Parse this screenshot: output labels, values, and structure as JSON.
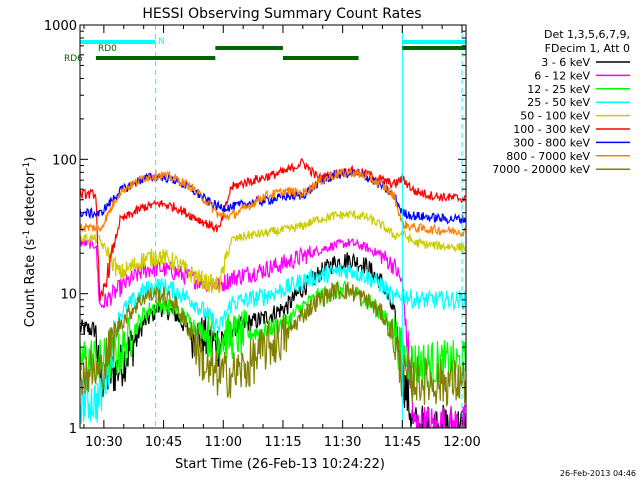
{
  "chart_data": {
    "type": "line",
    "title": "HESSI Observing Summary Count Rates",
    "xlabel": "Start Time (26-Feb-13 10:24:22)",
    "ylabel_main": "Count Rate (s",
    "ylabel_sup1": "-1",
    "ylabel_mid": " detector",
    "ylabel_sup2": "-1",
    "ylabel_end": ")",
    "yscale": "log",
    "ylim": [
      1,
      1000
    ],
    "xlim_minutes": [
      -6,
      91
    ],
    "xticks": [
      {
        "label": "10:30",
        "min": 0
      },
      {
        "label": "10:45",
        "min": 15
      },
      {
        "label": "11:00",
        "min": 30
      },
      {
        "label": "11:15",
        "min": 45
      },
      {
        "label": "11:30",
        "min": 60
      },
      {
        "label": "11:45",
        "min": 75
      },
      {
        "label": "12:00",
        "min": 90
      }
    ],
    "yticks": [
      {
        "label": "1",
        "value": 1
      },
      {
        "label": "10",
        "value": 10
      },
      {
        "label": "100",
        "value": 100
      },
      {
        "label": "1000",
        "value": 1000
      }
    ],
    "legend_placement": "right",
    "legend_header": [
      "Det 1,3,5,6,7,9,",
      "FDecim 1, Att 0"
    ],
    "series": [
      {
        "name": "3 - 6 keV",
        "color": "#000000",
        "x": [
          -6,
          -2,
          -1,
          4,
          10,
          14,
          18,
          22,
          26,
          29,
          32,
          36,
          40,
          46,
          50,
          54,
          58,
          62,
          66,
          70,
          73,
          75,
          78,
          82,
          86,
          91
        ],
        "y": [
          5.5,
          5.4,
          2.2,
          2.8,
          6,
          8,
          7,
          5,
          4.5,
          4.2,
          5.5,
          6,
          6.5,
          8,
          11,
          14,
          17,
          18,
          16,
          12,
          7,
          2.5,
          1,
          1,
          1,
          1
        ]
      },
      {
        "name": "6 - 12 keV",
        "color": "#ff00ff",
        "x": [
          -6,
          -2,
          -1,
          4,
          10,
          14,
          18,
          22,
          26,
          29,
          32,
          36,
          40,
          46,
          50,
          54,
          58,
          62,
          66,
          70,
          73,
          75,
          78,
          82,
          86,
          91
        ],
        "y": [
          24,
          23,
          8,
          11,
          15,
          15.5,
          14.5,
          13,
          12,
          11.5,
          13,
          14,
          15,
          17,
          19,
          21,
          23,
          24,
          22,
          19,
          16,
          12,
          1,
          1,
          1,
          1
        ]
      },
      {
        "name": "12 - 25 keV",
        "color": "#00ff00",
        "x": [
          -6,
          -2,
          -1,
          4,
          10,
          14,
          18,
          22,
          26,
          29,
          32,
          36,
          40,
          46,
          50,
          54,
          58,
          62,
          66,
          70,
          73,
          75,
          78,
          82,
          86,
          91
        ],
        "y": [
          3.2,
          3.3,
          3.1,
          3.5,
          7,
          8.5,
          7.5,
          6,
          5,
          4.8,
          4.8,
          5,
          5.3,
          6.2,
          8,
          9.5,
          10.5,
          10.5,
          9,
          7,
          5,
          3.5,
          3,
          3,
          3,
          3
        ]
      },
      {
        "name": "25 - 50 keV",
        "color": "#00ffff",
        "x": [
          -6,
          -2,
          -1,
          4,
          10,
          14,
          18,
          22,
          26,
          29,
          32,
          36,
          40,
          46,
          50,
          54,
          58,
          62,
          66,
          70,
          73,
          75,
          78,
          82,
          86,
          91
        ],
        "y": [
          1.6,
          1.6,
          1.6,
          7,
          10.5,
          11.5,
          10.5,
          9,
          7,
          5.5,
          8.5,
          9,
          9.5,
          11,
          12.5,
          13.5,
          14.5,
          15,
          13.5,
          11.5,
          9,
          10,
          9,
          9,
          9,
          9
        ]
      },
      {
        "name": "50 - 100 keV",
        "color": "#cccc00",
        "x": [
          -6,
          -2,
          -1,
          4,
          10,
          14,
          18,
          22,
          26,
          29,
          32,
          36,
          40,
          46,
          50,
          54,
          58,
          62,
          66,
          70,
          73,
          75,
          78,
          82,
          86,
          91
        ],
        "y": [
          26,
          25.5,
          25,
          14,
          18,
          19,
          17,
          14,
          12,
          11.5,
          25,
          27,
          28,
          30,
          32,
          36,
          38,
          39,
          37,
          32,
          27,
          28,
          24,
          23,
          22.5,
          22
        ]
      },
      {
        "name": "100 - 300 keV",
        "color": "#ff0000",
        "x": [
          -6,
          -2,
          -1,
          4,
          10,
          14,
          18,
          22,
          26,
          29,
          32,
          36,
          40,
          46,
          50,
          54,
          58,
          62,
          66,
          70,
          73,
          75,
          78,
          82,
          86,
          91
        ],
        "y": [
          55,
          55,
          8,
          35,
          44,
          47,
          44,
          38,
          33,
          30,
          62,
          68,
          73,
          82,
          95,
          72,
          78,
          82,
          78,
          70,
          65,
          72,
          58,
          54,
          52,
          51
        ]
      },
      {
        "name": "300 - 800 keV",
        "color": "#0000ff",
        "x": [
          -6,
          -2,
          -1,
          4,
          10,
          14,
          18,
          22,
          26,
          29,
          32,
          36,
          40,
          46,
          50,
          54,
          58,
          62,
          66,
          70,
          73,
          75,
          78,
          82,
          86,
          91
        ],
        "y": [
          40,
          39.5,
          39,
          58,
          72,
          75,
          70,
          60,
          49,
          44,
          44,
          47,
          49,
          53,
          54,
          67,
          76,
          79,
          74,
          63,
          53,
          40,
          38,
          37,
          36,
          36
        ]
      },
      {
        "name": "800 - 7000 keV",
        "color": "#ff8000",
        "x": [
          -6,
          -2,
          -1,
          4,
          10,
          14,
          18,
          22,
          26,
          29,
          32,
          36,
          40,
          46,
          50,
          54,
          58,
          62,
          66,
          70,
          73,
          75,
          78,
          82,
          86,
          91
        ],
        "y": [
          31,
          31,
          30,
          57,
          73,
          77,
          72,
          62,
          48,
          38,
          38,
          44,
          53,
          58,
          56,
          68,
          77,
          80,
          75,
          64,
          53,
          33,
          31,
          30,
          29.5,
          29
        ]
      },
      {
        "name": "7000 - 20000 keV",
        "color": "#808000",
        "x": [
          -6,
          -2,
          -1,
          4,
          10,
          14,
          18,
          22,
          26,
          29,
          32,
          36,
          40,
          46,
          50,
          54,
          58,
          62,
          66,
          70,
          73,
          75,
          78,
          82,
          86,
          91
        ],
        "y": [
          2.6,
          2.6,
          2.5,
          6,
          9.5,
          10,
          8.5,
          5,
          2.6,
          2.5,
          2.5,
          2.8,
          3.8,
          5,
          7,
          9,
          10.5,
          10.5,
          9,
          7,
          4.5,
          2.4,
          2.3,
          2.2,
          2.2,
          2.2
        ]
      }
    ],
    "annotations": {
      "rd0_label": "RD0",
      "rd6_label": "RD6",
      "n_label": "N",
      "rd0_color": "#006400",
      "rd6_color": "#006400",
      "n_color": "#00ffff",
      "rd0_segments": [
        [
          28,
          45
        ],
        [
          75,
          91
        ]
      ],
      "rd6_segments": [
        [
          -2,
          28
        ],
        [
          45,
          64
        ]
      ],
      "n_segments": [
        [
          -6,
          13
        ],
        [
          75,
          91
        ]
      ],
      "vlines_solid": [
        -6,
        75
      ],
      "vlines_dashed": [
        13,
        90
      ]
    },
    "colors": {
      "axes": "#000000",
      "background": "#ffffff"
    }
  },
  "footer_date": "26-Feb-2013 04:46"
}
